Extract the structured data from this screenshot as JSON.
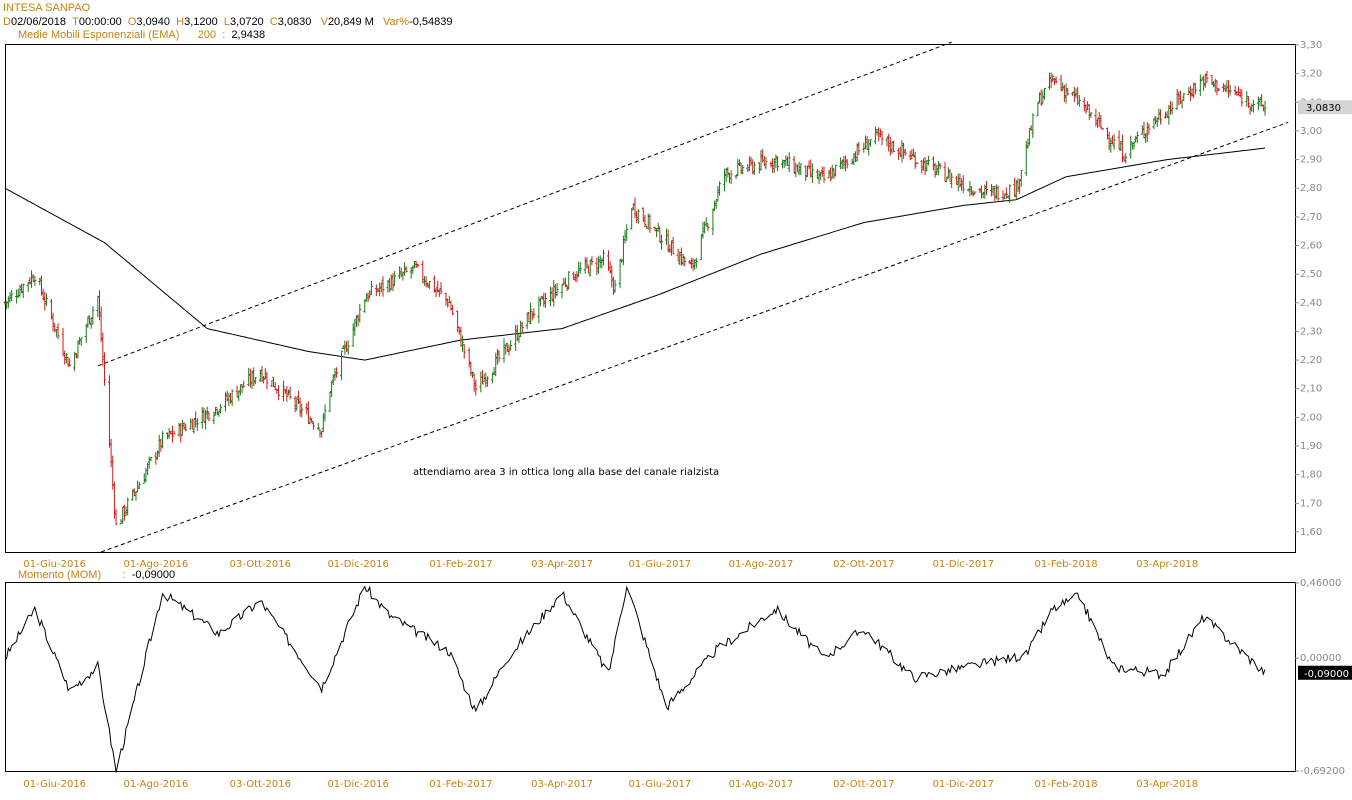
{
  "header": {
    "symbol": "INTESA SANPAO",
    "d_key": "D",
    "date": "02/06/2018",
    "t_key": "T",
    "time": "00:00:00",
    "o_key": "O",
    "open": "3,0940",
    "h_key": "H",
    "high": "3,1200",
    "l_key": "L",
    "low": "3,0720",
    "c_key": "C",
    "close": "3,0830",
    "v_key": "V",
    "volume": "20,849 M",
    "var_key": "Var%",
    "var": "-0,54839",
    "ema_label": "Medie Mobili Esponenziali (EMA)",
    "ema_period": "200",
    "ema_sep": ":",
    "ema_value": "2,9438"
  },
  "momentum_header": {
    "label": "Momento (MOM)",
    "sep": ":",
    "value": "-0,09000"
  },
  "annotation": "attendiamo area 3 in ottica long alla base del canale rialzista",
  "colors": {
    "up": "#1a7a1a",
    "down": "#d11a1a",
    "axis_text": "#c8820a",
    "price_tag_bg": "#d4d4d4",
    "mom_tag_bg": "#000000"
  },
  "chart_data": [
    {
      "type": "candlestick",
      "title": "INTESA SANPAO",
      "x_tick_labels": [
        "01-Giu-2016",
        "01-Ago-2016",
        "03-Ott-2016",
        "01-Dic-2016",
        "01-Feb-2017",
        "03-Apr-2017",
        "01-Giu-2017",
        "01-Ago-2017",
        "02-Ott-2017",
        "01-Dic-2017",
        "01-Feb-2018",
        "03-Apr-2018"
      ],
      "y_tick_labels": [
        "3,30",
        "3,20",
        "3,10",
        "3,00",
        "2,90",
        "2,80",
        "2,70",
        "2,60",
        "2,50",
        "2,40",
        "2,30",
        "2,20",
        "2,10",
        "2,00",
        "1,90",
        "1,80",
        "1,70",
        "1,60"
      ],
      "ylim": [
        1.53,
        3.3
      ],
      "last_price_label": "3,0830",
      "ohlc_anchor_dates": [
        "2016-05-02",
        "2016-05-20",
        "2016-06-10",
        "2016-06-27",
        "2016-07-08",
        "2016-08-05",
        "2016-09-08",
        "2016-10-03",
        "2016-11-09",
        "2016-11-14",
        "2016-12-05",
        "2017-01-04",
        "2017-01-25",
        "2017-02-10",
        "2017-03-02",
        "2017-03-15",
        "2017-04-10",
        "2017-04-28",
        "2017-05-05",
        "2017-05-15",
        "2017-06-20",
        "2017-07-10",
        "2017-08-10",
        "2017-09-08",
        "2017-10-09",
        "2017-11-15",
        "2017-12-15",
        "2018-01-02",
        "2018-01-15",
        "2018-01-24",
        "2018-02-09",
        "2018-03-08",
        "2018-03-23",
        "2018-04-25",
        "2018-06-01"
      ],
      "close_anchors": [
        2.4,
        2.5,
        2.18,
        2.42,
        1.62,
        1.92,
        2.04,
        2.16,
        1.96,
        2.1,
        2.42,
        2.52,
        2.4,
        2.1,
        2.25,
        2.36,
        2.5,
        2.55,
        2.45,
        2.74,
        2.52,
        2.85,
        2.9,
        2.83,
        2.98,
        2.86,
        2.78,
        2.8,
        3.1,
        3.18,
        3.1,
        2.92,
        3.02,
        3.18,
        3.08
      ],
      "ema": {
        "name": "Medie Mobili Esponenziali (EMA)",
        "period": 200,
        "anchor_dates": [
          "2016-05-02",
          "2016-07-01",
          "2016-09-01",
          "2016-11-01",
          "2016-12-05",
          "2017-02-01",
          "2017-04-03",
          "2017-06-01",
          "2017-08-01",
          "2017-10-02",
          "2017-12-01",
          "2018-01-02",
          "2018-02-01",
          "2018-04-03",
          "2018-06-01"
        ],
        "values": [
          2.8,
          2.61,
          2.31,
          2.23,
          2.2,
          2.27,
          2.31,
          2.43,
          2.57,
          2.68,
          2.74,
          2.76,
          2.84,
          2.9,
          2.94
        ]
      },
      "trendlines": [
        {
          "style": "dashed",
          "from": [
            "2016-06-27",
            2.18
          ],
          "to": [
            "2017-11-24",
            3.31
          ]
        },
        {
          "style": "dashed",
          "from": [
            "2016-06-29",
            1.53
          ],
          "to": [
            "2018-06-15",
            3.03
          ]
        }
      ]
    },
    {
      "type": "line",
      "title": "Momento (MOM)",
      "y_tick_labels": [
        "0,46000",
        "0,00000",
        "-0,69200"
      ],
      "ylim": [
        -0.692,
        0.46
      ],
      "last_value_label": "-0,09000",
      "anchor_dates": [
        "2016-05-02",
        "2016-05-20",
        "2016-06-10",
        "2016-06-27",
        "2016-07-08",
        "2016-08-05",
        "2016-09-08",
        "2016-10-03",
        "2016-11-09",
        "2016-12-05",
        "2016-12-20",
        "2017-01-25",
        "2017-02-10",
        "2017-03-01",
        "2017-04-03",
        "2017-05-01",
        "2017-05-12",
        "2017-06-05",
        "2017-07-05",
        "2017-08-10",
        "2017-09-08",
        "2017-10-02",
        "2017-11-01",
        "2017-12-05",
        "2018-01-08",
        "2018-01-24",
        "2018-02-09",
        "2018-03-01",
        "2018-04-01",
        "2018-04-25",
        "2018-06-01"
      ],
      "values": [
        0.0,
        0.3,
        -0.2,
        -0.05,
        -0.69,
        0.4,
        0.15,
        0.35,
        -0.18,
        0.44,
        0.26,
        0.04,
        -0.33,
        0.0,
        0.4,
        -0.1,
        0.45,
        -0.3,
        0.05,
        0.3,
        0.0,
        0.18,
        -0.12,
        -0.05,
        0.02,
        0.3,
        0.38,
        -0.05,
        -0.1,
        0.25,
        -0.09
      ]
    }
  ]
}
